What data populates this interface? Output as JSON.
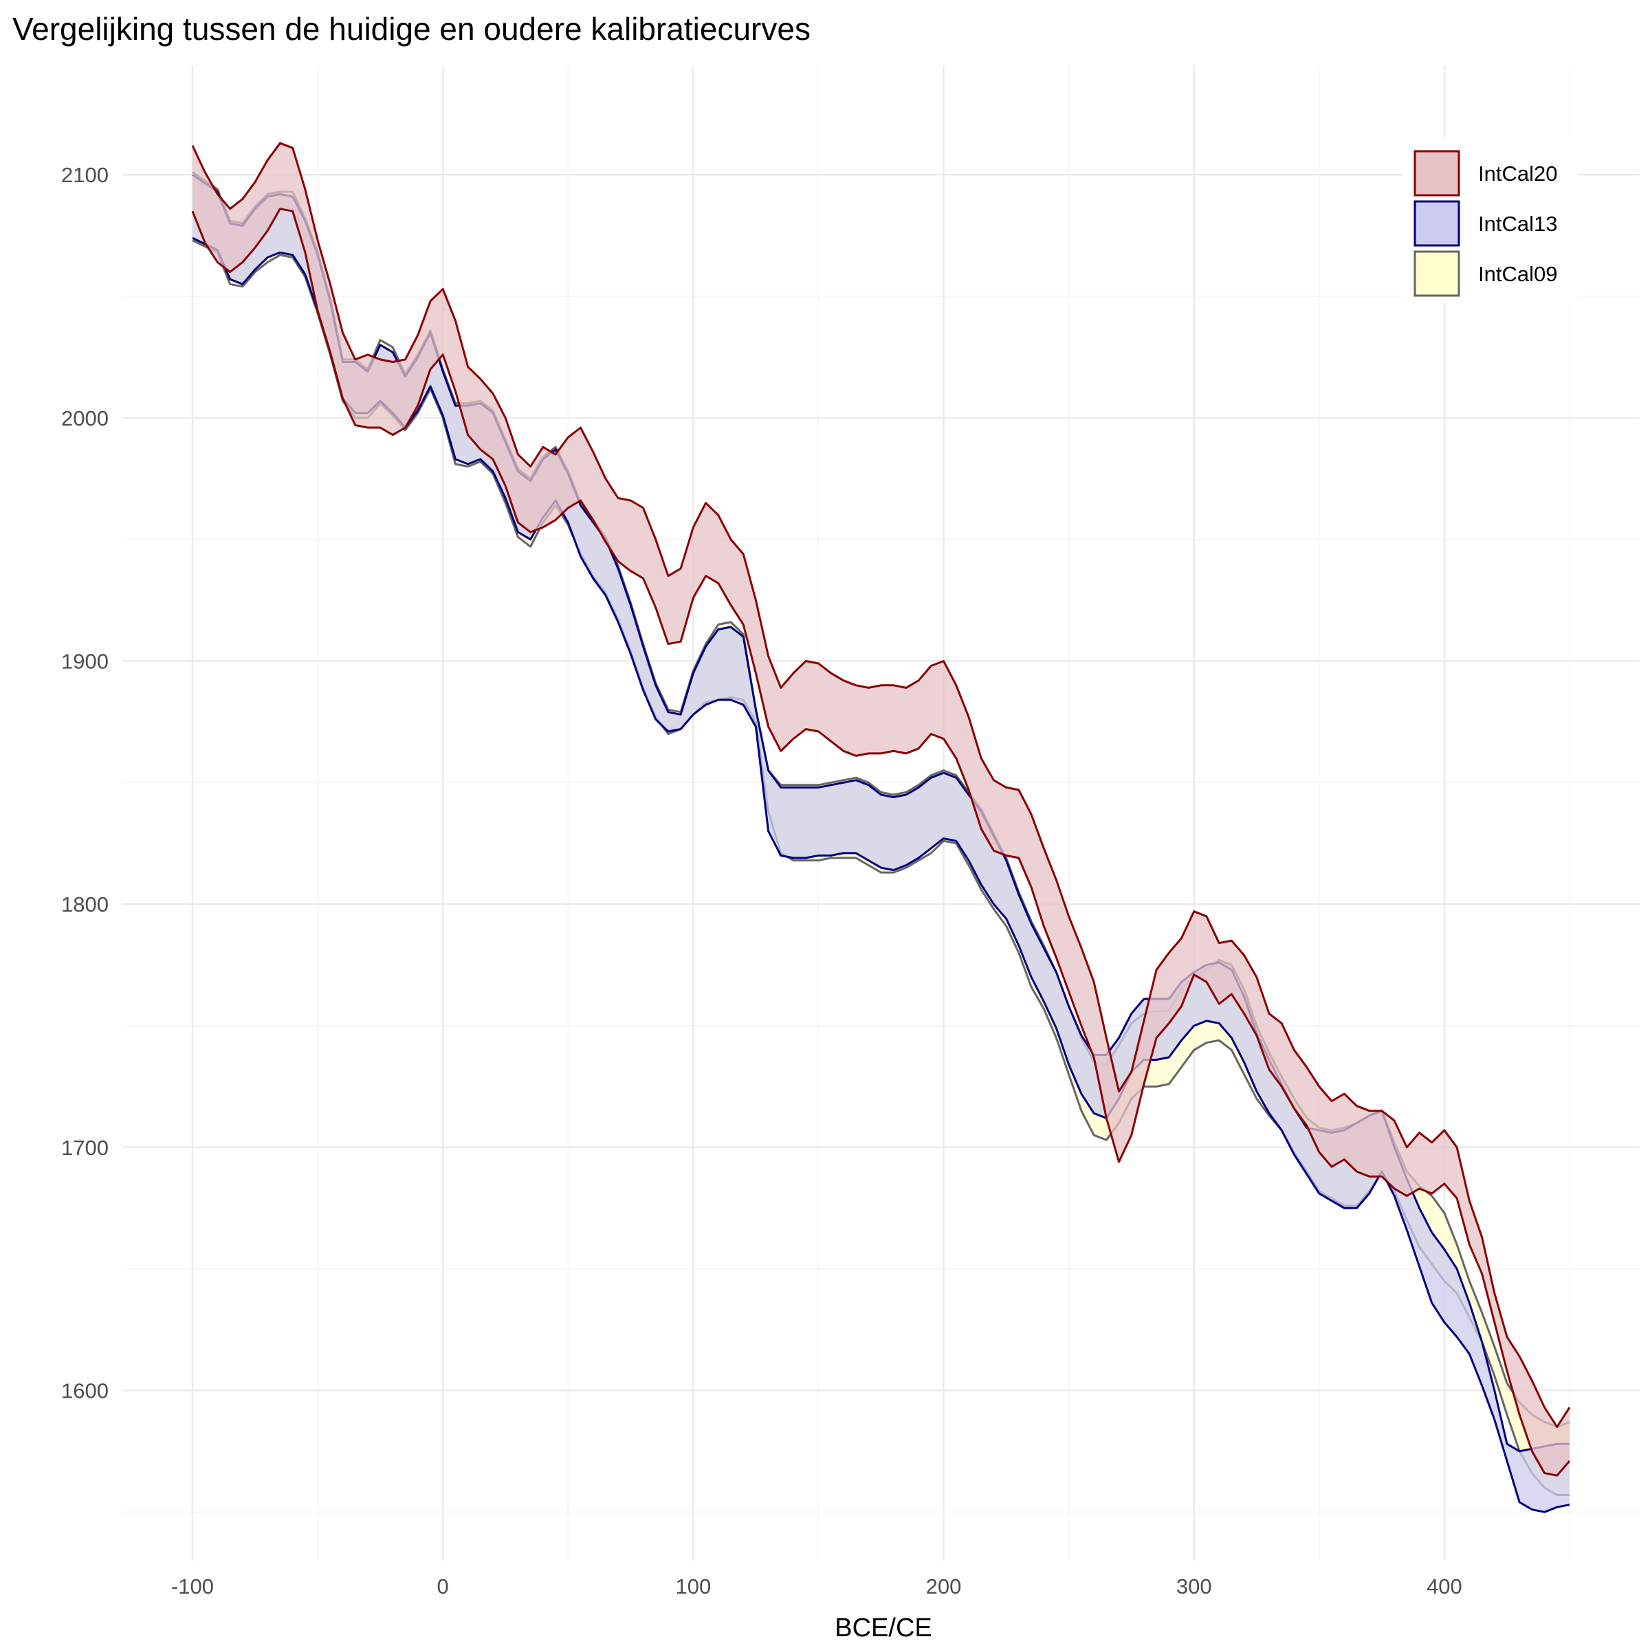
{
  "chart_data": {
    "type": "area",
    "title": "Vergelijking tussen de huidige en oudere kalibratiecurves",
    "xlabel": "BCE/CE",
    "ylabel": "",
    "xlim": [
      -128,
      478
    ],
    "ylim": [
      1530,
      2145
    ],
    "x_ticks": [
      -100,
      0,
      100,
      200,
      300,
      400
    ],
    "x_tick_labels": [
      "-100",
      "0",
      "100",
      "200",
      "300",
      "400"
    ],
    "y_ticks": [
      1600,
      1700,
      1800,
      1900,
      2000,
      2100
    ],
    "y_tick_labels": [
      "1600",
      "1700",
      "1800",
      "1900",
      "2000",
      "2100"
    ],
    "grid": true,
    "legend_position": "top-right",
    "series": [
      {
        "name": "IntCal09",
        "fill": "#ffffcc",
        "stroke": "#666666",
        "x": [
          -100,
          -90,
          -85,
          -80,
          -75,
          -70,
          -65,
          -60,
          -55,
          -50,
          -45,
          -40,
          -35,
          -30,
          -25,
          -20,
          -15,
          -10,
          -5,
          0,
          5,
          10,
          15,
          20,
          25,
          30,
          35,
          40,
          45,
          50,
          55,
          60,
          65,
          70,
          75,
          80,
          85,
          90,
          95,
          100,
          105,
          110,
          115,
          120,
          125,
          130,
          135,
          140,
          145,
          150,
          155,
          160,
          165,
          170,
          175,
          180,
          185,
          190,
          195,
          200,
          205,
          210,
          215,
          220,
          225,
          230,
          235,
          240,
          245,
          250,
          255,
          260,
          265,
          270,
          275,
          280,
          285,
          290,
          295,
          300,
          305,
          310,
          315,
          320,
          325,
          330,
          335,
          340,
          345,
          350,
          355,
          360,
          365,
          370,
          375,
          380,
          385,
          390,
          395,
          400,
          405,
          410,
          415,
          420,
          425,
          430,
          435,
          440,
          445,
          450
        ],
        "upper": [
          2101,
          2094,
          2081,
          2080,
          2087,
          2092,
          2093,
          2093,
          2082,
          2068,
          2049,
          2024,
          2024,
          2020,
          2032,
          2029,
          2018,
          2026,
          2036,
          2020,
          2006,
          2006,
          2007,
          2003,
          1991,
          1979,
          1975,
          1984,
          1988,
          1978,
          1965,
          1958,
          1951,
          1939,
          1924,
          1907,
          1891,
          1880,
          1879,
          1896,
          1907,
          1915,
          1916,
          1911,
          1880,
          1855,
          1849,
          1849,
          1849,
          1849,
          1850,
          1851,
          1852,
          1850,
          1846,
          1845,
          1846,
          1849,
          1853,
          1855,
          1853,
          1846,
          1839,
          1829,
          1819,
          1805,
          1793,
          1783,
          1772,
          1758,
          1745,
          1735,
          1734,
          1742,
          1751,
          1755,
          1756,
          1756,
          1765,
          1770,
          1773,
          1777,
          1775,
          1765,
          1750,
          1739,
          1729,
          1720,
          1712,
          1708,
          1707,
          1708,
          1710,
          1713,
          1715,
          1702,
          1690,
          1684,
          1680,
          1673,
          1660,
          1645,
          1632,
          1618,
          1603,
          1595,
          1590,
          1587,
          1585,
          1587
        ],
        "lower": [
          2073,
          2068,
          2055,
          2054,
          2060,
          2064,
          2067,
          2066,
          2058,
          2043,
          2026,
          2007,
          2000,
          2000,
          2006,
          2001,
          1995,
          2002,
          2012,
          2000,
          1981,
          1980,
          1982,
          1977,
          1965,
          1951,
          1947,
          1957,
          1964,
          1956,
          1944,
          1935,
          1928,
          1917,
          1904,
          1889,
          1877,
          1870,
          1872,
          1878,
          1883,
          1884,
          1885,
          1884,
          1875,
          1838,
          1821,
          1818,
          1818,
          1818,
          1819,
          1819,
          1819,
          1816,
          1813,
          1813,
          1815,
          1818,
          1821,
          1826,
          1825,
          1816,
          1806,
          1798,
          1791,
          1780,
          1766,
          1757,
          1745,
          1730,
          1715,
          1705,
          1703,
          1710,
          1720,
          1725,
          1725,
          1726,
          1733,
          1740,
          1743,
          1744,
          1740,
          1730,
          1720,
          1713,
          1707,
          1698,
          1690,
          1682,
          1679,
          1676,
          1676,
          1682,
          1690,
          1682,
          1670,
          1659,
          1652,
          1645,
          1640,
          1630,
          1620,
          1606,
          1590,
          1575,
          1566,
          1560,
          1557,
          1557
        ]
      },
      {
        "name": "IntCal13",
        "fill": "#ccccee",
        "stroke": "#000080",
        "x": [
          -100,
          -90,
          -85,
          -80,
          -75,
          -70,
          -65,
          -60,
          -55,
          -50,
          -45,
          -40,
          -35,
          -30,
          -25,
          -20,
          -15,
          -10,
          -5,
          0,
          5,
          10,
          15,
          20,
          25,
          30,
          35,
          40,
          45,
          50,
          55,
          60,
          65,
          70,
          75,
          80,
          85,
          90,
          95,
          100,
          105,
          110,
          115,
          120,
          125,
          130,
          135,
          140,
          145,
          150,
          155,
          160,
          165,
          170,
          175,
          180,
          185,
          190,
          195,
          200,
          205,
          210,
          215,
          220,
          225,
          230,
          235,
          240,
          245,
          250,
          255,
          260,
          265,
          270,
          275,
          280,
          285,
          290,
          295,
          300,
          305,
          310,
          315,
          320,
          325,
          330,
          335,
          340,
          345,
          350,
          355,
          360,
          365,
          370,
          375,
          380,
          385,
          390,
          395,
          400,
          405,
          410,
          415,
          420,
          425,
          430,
          435,
          440,
          445,
          450
        ],
        "upper": [
          2100,
          2093,
          2080,
          2079,
          2086,
          2091,
          2092,
          2091,
          2081,
          2067,
          2048,
          2023,
          2023,
          2019,
          2030,
          2027,
          2017,
          2025,
          2035,
          2019,
          2005,
          2005,
          2006,
          2002,
          1990,
          1978,
          1974,
          1983,
          1987,
          1977,
          1964,
          1957,
          1950,
          1938,
          1923,
          1906,
          1890,
          1879,
          1878,
          1895,
          1906,
          1913,
          1914,
          1910,
          1880,
          1855,
          1848,
          1848,
          1848,
          1848,
          1849,
          1850,
          1851,
          1849,
          1845,
          1844,
          1845,
          1848,
          1852,
          1854,
          1852,
          1845,
          1838,
          1828,
          1818,
          1804,
          1792,
          1782,
          1772,
          1758,
          1746,
          1738,
          1738,
          1745,
          1755,
          1761,
          1761,
          1761,
          1768,
          1772,
          1775,
          1776,
          1773,
          1762,
          1747,
          1736,
          1726,
          1716,
          1708,
          1707,
          1706,
          1707,
          1710,
          1713,
          1715,
          1700,
          1687,
          1675,
          1665,
          1658,
          1650,
          1636,
          1620,
          1600,
          1578,
          1575,
          1576,
          1577,
          1578,
          1578
        ],
        "lower": [
          2074,
          2069,
          2057,
          2055,
          2061,
          2066,
          2068,
          2067,
          2059,
          2044,
          2027,
          2008,
          2002,
          2002,
          2007,
          2002,
          1996,
          2003,
          2013,
          2001,
          1983,
          1981,
          1983,
          1978,
          1967,
          1953,
          1950,
          1959,
          1966,
          1957,
          1943,
          1934,
          1927,
          1916,
          1903,
          1888,
          1876,
          1871,
          1872,
          1878,
          1882,
          1884,
          1884,
          1882,
          1873,
          1830,
          1820,
          1819,
          1819,
          1820,
          1820,
          1821,
          1821,
          1818,
          1815,
          1814,
          1816,
          1819,
          1823,
          1827,
          1826,
          1818,
          1808,
          1800,
          1794,
          1783,
          1770,
          1760,
          1749,
          1734,
          1722,
          1714,
          1712,
          1720,
          1731,
          1736,
          1736,
          1737,
          1744,
          1750,
          1752,
          1751,
          1745,
          1735,
          1723,
          1714,
          1707,
          1697,
          1689,
          1681,
          1678,
          1675,
          1675,
          1681,
          1690,
          1680,
          1666,
          1651,
          1636,
          1628,
          1622,
          1615,
          1602,
          1588,
          1571,
          1554,
          1551,
          1550,
          1552,
          1553
        ]
      },
      {
        "name": "IntCal20",
        "fill": "#e6c3c6",
        "stroke": "#8b0000",
        "x": [
          -100,
          -95,
          -90,
          -85,
          -80,
          -75,
          -70,
          -65,
          -60,
          -55,
          -50,
          -45,
          -40,
          -35,
          -30,
          -25,
          -20,
          -15,
          -10,
          -5,
          0,
          5,
          10,
          15,
          20,
          25,
          30,
          35,
          40,
          45,
          50,
          55,
          60,
          65,
          70,
          75,
          80,
          85,
          90,
          95,
          100,
          105,
          110,
          115,
          120,
          125,
          130,
          135,
          140,
          145,
          150,
          155,
          160,
          165,
          170,
          175,
          180,
          185,
          190,
          195,
          200,
          205,
          210,
          215,
          220,
          225,
          230,
          235,
          240,
          245,
          250,
          255,
          260,
          265,
          270,
          275,
          280,
          285,
          290,
          295,
          300,
          305,
          310,
          315,
          320,
          325,
          330,
          335,
          340,
          345,
          350,
          355,
          360,
          365,
          370,
          375,
          380,
          385,
          390,
          395,
          400,
          405,
          410,
          415,
          420,
          425,
          430,
          435,
          440,
          445,
          450
        ],
        "upper": [
          2112,
          2101,
          2092,
          2086,
          2090,
          2097,
          2106,
          2113,
          2111,
          2094,
          2073,
          2055,
          2035,
          2024,
          2026,
          2024,
          2023,
          2024,
          2034,
          2048,
          2053,
          2040,
          2021,
          2016,
          2010,
          2000,
          1985,
          1980,
          1988,
          1985,
          1992,
          1996,
          1986,
          1975,
          1967,
          1966,
          1963,
          1950,
          1935,
          1938,
          1955,
          1965,
          1960,
          1950,
          1944,
          1925,
          1902,
          1889,
          1895,
          1900,
          1899,
          1895,
          1892,
          1890,
          1889,
          1890,
          1890,
          1889,
          1892,
          1898,
          1900,
          1890,
          1877,
          1860,
          1851,
          1848,
          1847,
          1837,
          1823,
          1810,
          1795,
          1782,
          1768,
          1745,
          1723,
          1731,
          1752,
          1773,
          1780,
          1786,
          1797,
          1795,
          1784,
          1785,
          1779,
          1770,
          1755,
          1751,
          1740,
          1733,
          1725,
          1719,
          1722,
          1717,
          1715,
          1715,
          1711,
          1700,
          1706,
          1702,
          1707,
          1700,
          1678,
          1663,
          1640,
          1622,
          1614,
          1604,
          1593,
          1585,
          1593
        ],
        "lower": [
          2085,
          2072,
          2064,
          2060,
          2064,
          2070,
          2077,
          2086,
          2085,
          2068,
          2044,
          2027,
          2008,
          1997,
          1996,
          1996,
          1993,
          1996,
          2005,
          2020,
          2026,
          2011,
          1993,
          1987,
          1983,
          1972,
          1957,
          1953,
          1955,
          1958,
          1963,
          1966,
          1958,
          1949,
          1941,
          1937,
          1934,
          1922,
          1907,
          1908,
          1926,
          1935,
          1932,
          1923,
          1915,
          1895,
          1873,
          1863,
          1868,
          1872,
          1871,
          1867,
          1863,
          1861,
          1862,
          1862,
          1863,
          1862,
          1864,
          1870,
          1868,
          1860,
          1847,
          1831,
          1822,
          1820,
          1819,
          1807,
          1791,
          1778,
          1764,
          1750,
          1737,
          1712,
          1694,
          1705,
          1726,
          1745,
          1751,
          1758,
          1771,
          1768,
          1759,
          1763,
          1755,
          1746,
          1732,
          1725,
          1716,
          1709,
          1698,
          1692,
          1695,
          1690,
          1688,
          1688,
          1683,
          1680,
          1683,
          1681,
          1685,
          1679,
          1660,
          1648,
          1628,
          1608,
          1590,
          1575,
          1566,
          1565,
          1571
        ]
      }
    ]
  }
}
